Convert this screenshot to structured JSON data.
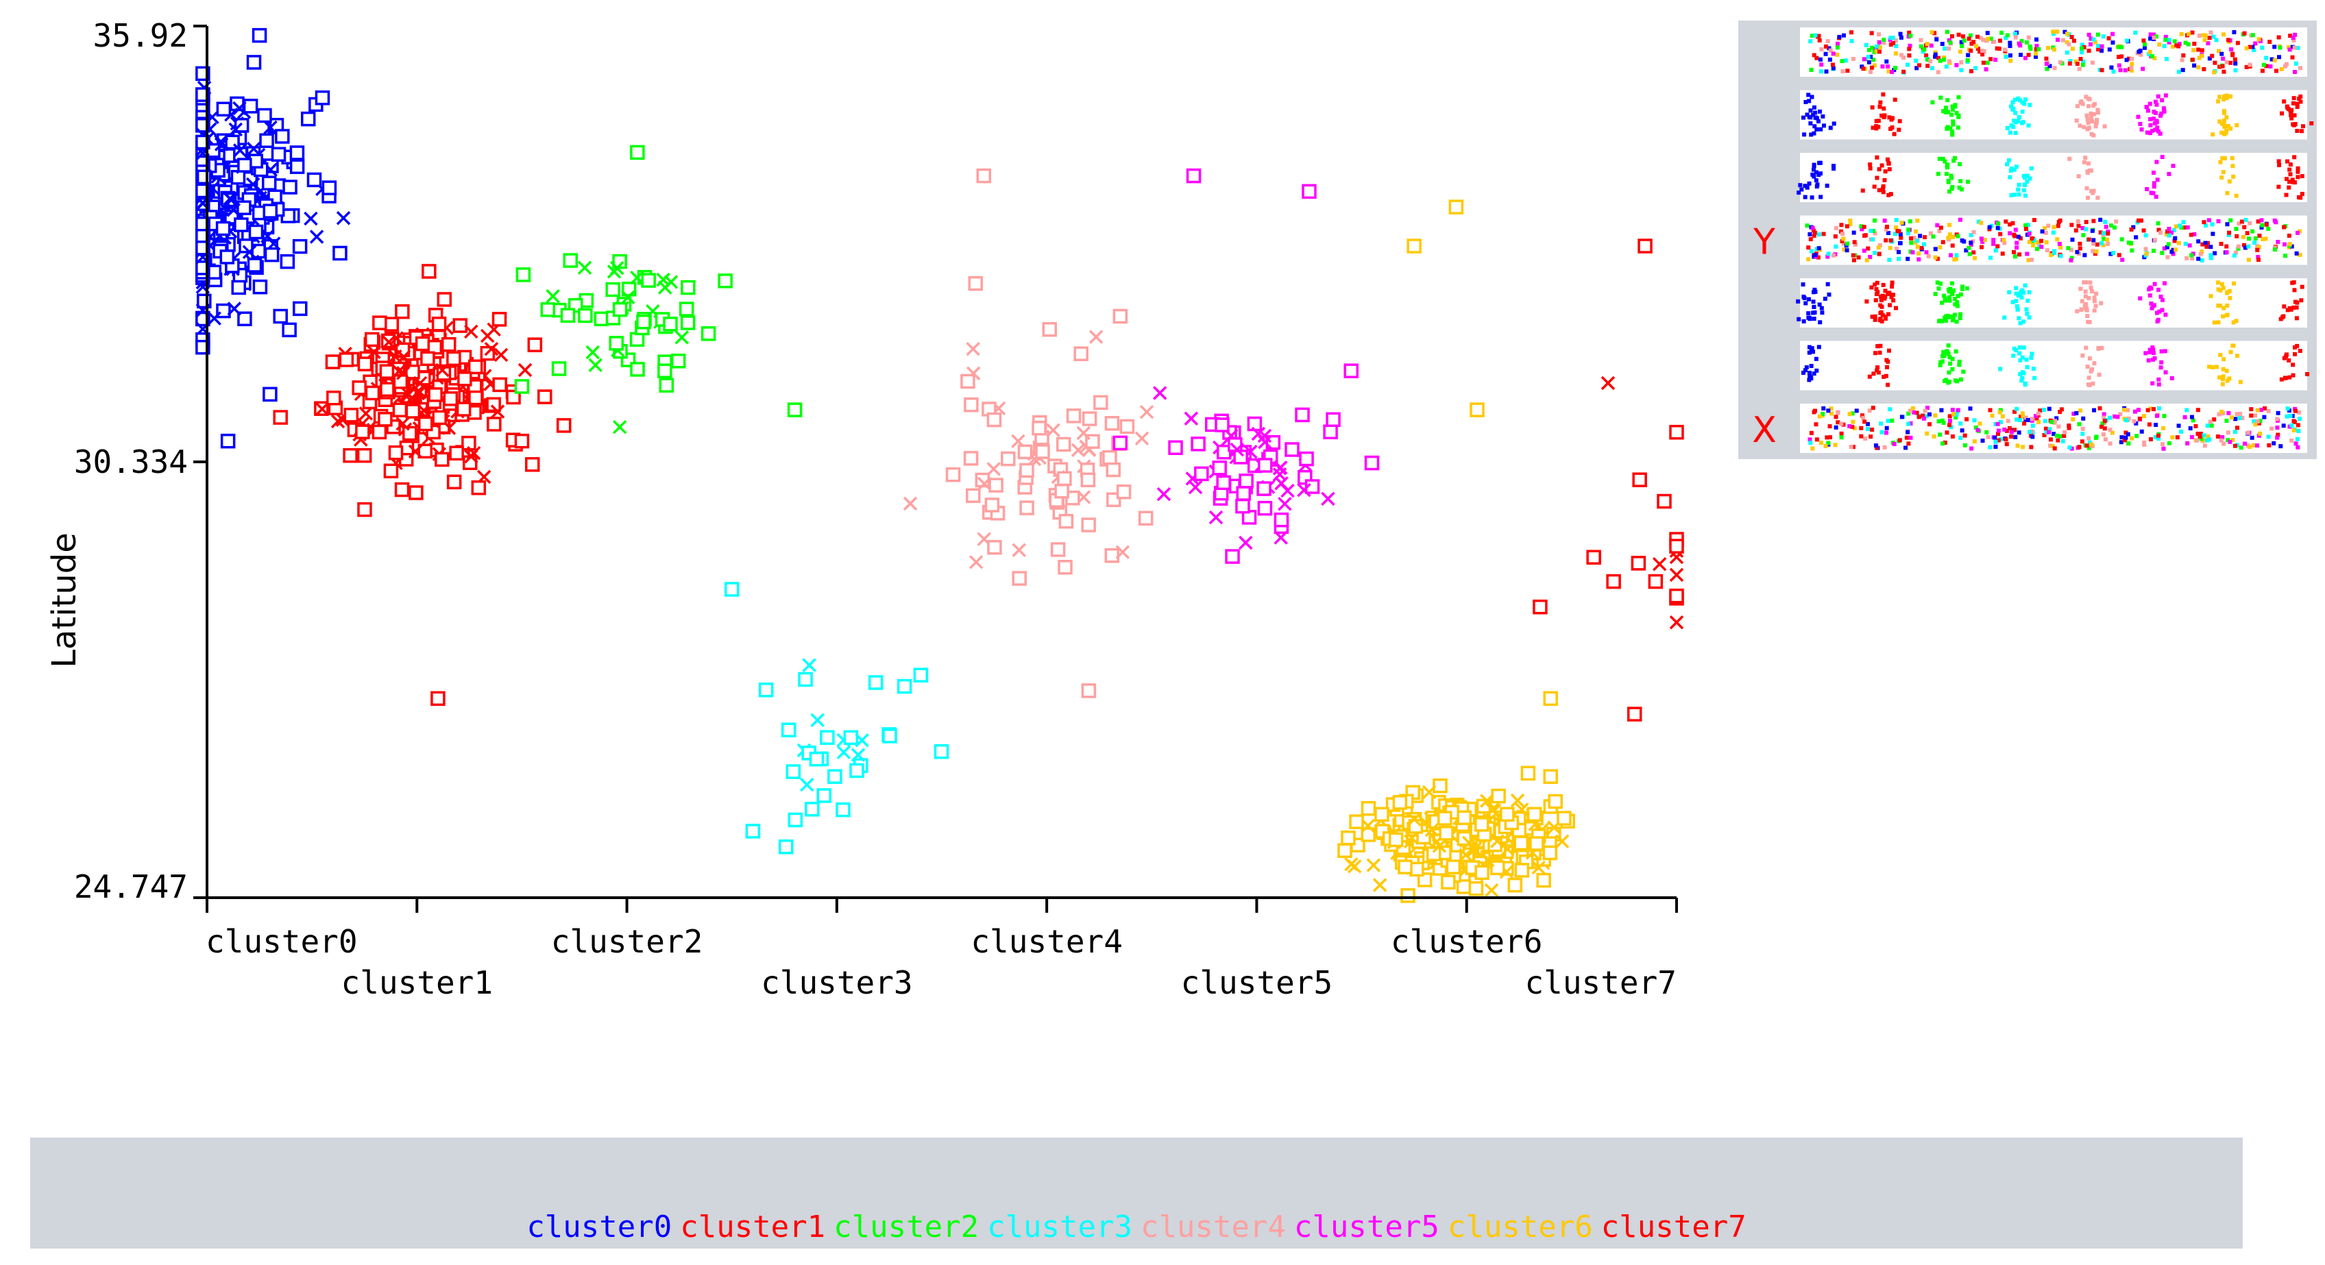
{
  "chart_data": {
    "type": "scatter",
    "xlabel": "",
    "ylabel": "Latitude",
    "ylim": [
      24.747,
      35.92
    ],
    "y_ticks": [
      "35.92",
      "30.334",
      "24.747"
    ],
    "categories": [
      "cluster0",
      "cluster1",
      "cluster2",
      "cluster3",
      "cluster4",
      "cluster5",
      "cluster6",
      "cluster7"
    ],
    "legend_placement": "bottom",
    "markers": [
      "square",
      "x"
    ],
    "series": [
      {
        "name": "cluster0",
        "color": "#0000ff",
        "x": 0,
        "y_center": 33.7,
        "y_spread": 1.15,
        "count": 380,
        "outliers": [
          [
            0.25,
            35.8
          ],
          [
            0.55,
            35.0
          ],
          [
            0.3,
            31.2
          ],
          [
            0.35,
            32.2
          ],
          [
            0.1,
            30.6
          ]
        ]
      },
      {
        "name": "cluster1",
        "color": "#ff0000",
        "x": 1,
        "y_center": 31.3,
        "y_spread": 0.85,
        "count": 260,
        "outliers": [
          [
            0.1,
            27.3
          ],
          [
            0.5,
            30.6
          ],
          [
            0.55,
            30.3
          ],
          [
            0.7,
            30.8
          ]
        ]
      },
      {
        "name": "cluster2",
        "color": "#00ff00",
        "x": 2,
        "y_center": 32.2,
        "y_spread": 0.8,
        "count": 55,
        "outliers": [
          [
            0.05,
            34.3
          ],
          [
            0.8,
            31.0
          ],
          [
            -0.5,
            31.3
          ]
        ]
      },
      {
        "name": "cluster3",
        "color": "#00ffff",
        "x": 3,
        "y_center": 26.6,
        "y_spread": 0.9,
        "count": 30,
        "outliers": [
          [
            -0.5,
            28.7
          ],
          [
            0.4,
            27.6
          ],
          [
            -0.4,
            25.6
          ]
        ]
      },
      {
        "name": "cluster4",
        "color": "#ffa0a0",
        "x": 4,
        "y_center": 30.3,
        "y_spread": 1.2,
        "count": 85,
        "outliers": [
          [
            -0.3,
            34.0
          ],
          [
            0.35,
            32.2
          ],
          [
            0.2,
            27.4
          ]
        ]
      },
      {
        "name": "cluster5",
        "color": "#ff00ff",
        "x": 5,
        "y_center": 30.2,
        "y_spread": 0.75,
        "count": 70,
        "outliers": [
          [
            -0.3,
            34.0
          ],
          [
            0.25,
            33.8
          ],
          [
            0.45,
            31.5
          ]
        ]
      },
      {
        "name": "cluster6",
        "color": "#ffc800",
        "x": 6,
        "y_center": 25.5,
        "y_spread": 0.45,
        "count": 320,
        "outliers": [
          [
            -0.05,
            33.6
          ],
          [
            -0.25,
            33.1
          ],
          [
            0.05,
            31.0
          ],
          [
            0.4,
            27.3
          ],
          [
            0.4,
            26.3
          ]
        ]
      },
      {
        "name": "cluster7",
        "color": "#ff0000",
        "x": 7,
        "y_center": 29.3,
        "y_spread": 1.3,
        "count": 16,
        "outliers": [
          [
            -0.15,
            33.1
          ],
          [
            -0.3,
            28.8
          ],
          [
            -0.1,
            28.8
          ],
          [
            -0.2,
            27.1
          ]
        ]
      }
    ]
  },
  "matrix_panel": {
    "rows": 7,
    "labels": [
      {
        "row": 3,
        "text": "Y"
      },
      {
        "row": 6,
        "text": "X"
      }
    ],
    "label_color": "#ff0000"
  },
  "legend": {
    "items": [
      {
        "text": "cluster0",
        "color": "#0000ff"
      },
      {
        "text": "cluster1",
        "color": "#ff0000"
      },
      {
        "text": "cluster2",
        "color": "#00ff00"
      },
      {
        "text": "cluster3",
        "color": "#00ffff"
      },
      {
        "text": "cluster4",
        "color": "#ffa0a0"
      },
      {
        "text": "cluster5",
        "color": "#ff00ff"
      },
      {
        "text": "cluster6",
        "color": "#ffc800"
      },
      {
        "text": "cluster7",
        "color": "#ff0000"
      }
    ]
  }
}
